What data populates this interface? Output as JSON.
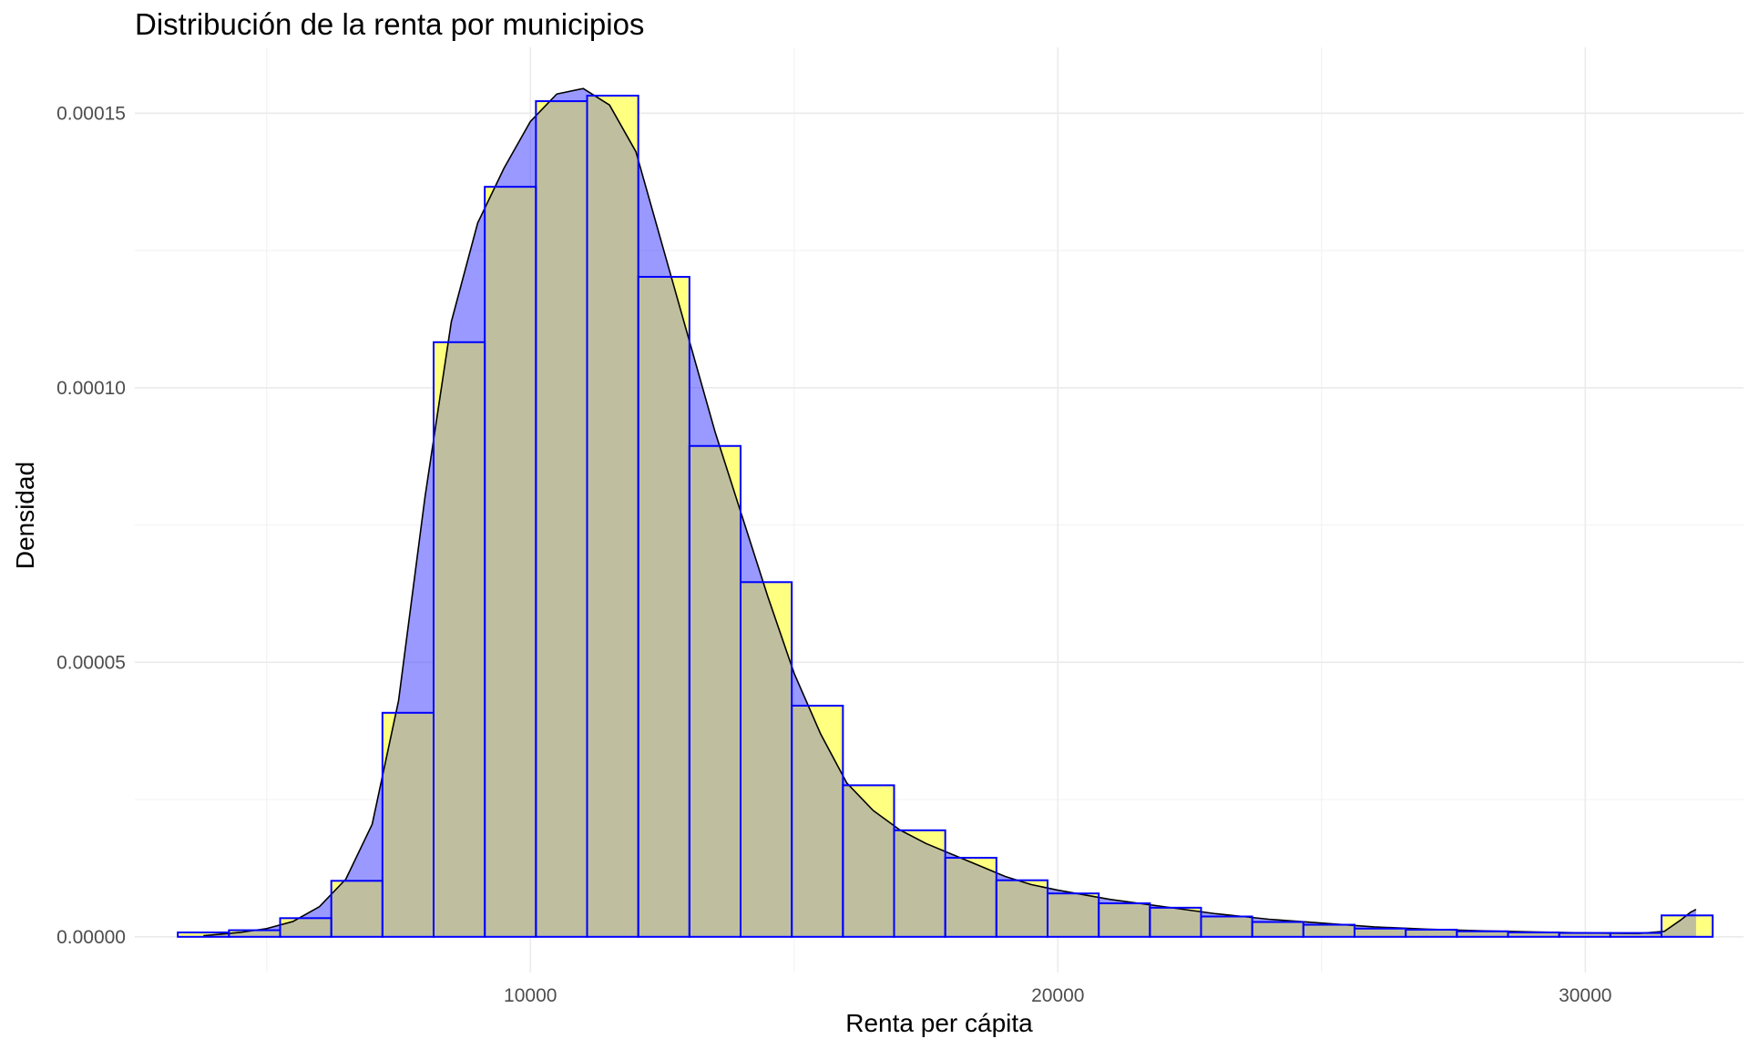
{
  "chart_data": {
    "type": "bar",
    "title": "Distribución de la renta por municipios",
    "xlabel": "Renta per cápita",
    "ylabel": "Densidad",
    "xlim": [
      2500,
      33000
    ],
    "ylim": [
      -6.5e-06,
      0.000162
    ],
    "x_ticks": [
      10000,
      20000,
      30000
    ],
    "x_tick_labels": [
      "10000",
      "20000",
      "30000"
    ],
    "y_ticks": [
      0,
      5e-05,
      0.0001,
      0.00015
    ],
    "y_tick_labels": [
      "0.00000",
      "0.00005",
      "0.00010",
      "0.00015"
    ],
    "grid": true,
    "colors": {
      "histogram_fill": "#ffff80",
      "histogram_border": "#0000ff",
      "density_fill": "#3333ff",
      "density_line": "#000000",
      "overlap_fill": "#bfbf9f",
      "grid_major": "#ebebeb",
      "grid_minor": "#f3f3f3"
    },
    "histogram": {
      "bin_width": 970,
      "bin_centers": [
        3800,
        4770,
        5740,
        6710,
        7680,
        8650,
        9620,
        10590,
        11560,
        12530,
        13500,
        14470,
        15440,
        16410,
        17380,
        18350,
        19320,
        20290,
        21260,
        22230,
        23200,
        24170,
        25140,
        26110,
        27080,
        28050,
        29020,
        29990,
        30960,
        31930
      ],
      "density": [
        8e-07,
        1.2e-06,
        3.4e-06,
        1.02e-05,
        4.08e-05,
        0.0001083,
        0.0001366,
        0.0001522,
        0.0001532,
        0.0001202,
        8.94e-05,
        6.46e-05,
        4.21e-05,
        2.76e-05,
        1.94e-05,
        1.44e-05,
        1.03e-05,
        7.9e-06,
        6.1e-06,
        5.3e-06,
        3.7e-06,
        2.7e-06,
        2.2e-06,
        1.5e-06,
        1.3e-06,
        1e-06,
        8e-07,
        7e-07,
        7e-07,
        3.9e-06
      ]
    },
    "density_curve": {
      "x": [
        3800,
        4500,
        5000,
        5500,
        6000,
        6500,
        7000,
        7500,
        8000,
        8500,
        9000,
        9500,
        10000,
        10500,
        11000,
        11500,
        12000,
        12500,
        13000,
        13500,
        14000,
        14500,
        15000,
        15500,
        16000,
        16500,
        17000,
        17500,
        18000,
        18500,
        19000,
        19500,
        20000,
        21000,
        22000,
        23000,
        24000,
        25000,
        26000,
        27000,
        28000,
        29000,
        30000,
        31000,
        31500,
        31800,
        32000,
        32100
      ],
      "y": [
        2e-07,
        8e-07,
        1.5e-06,
        2.8e-06,
        5.5e-06,
        1.05e-05,
        2.05e-05,
        4.3e-05,
        8e-05,
        0.000112,
        0.00013,
        0.00014,
        0.0001485,
        0.0001535,
        0.0001545,
        0.0001515,
        0.000143,
        0.000126,
        0.000109,
        9.2e-05,
        7.7e-05,
        6.2e-05,
        4.8e-05,
        3.7e-05,
        2.8e-05,
        2.3e-05,
        1.95e-05,
        1.7e-05,
        1.5e-05,
        1.3e-05,
        1.1e-05,
        9.5e-06,
        8.5e-06,
        6.8e-06,
        5.5e-06,
        4.2e-06,
        3.2e-06,
        2.5e-06,
        1.8e-06,
        1.4e-06,
        1.1e-06,
        9e-07,
        7e-07,
        6e-07,
        1e-06,
        3e-06,
        4.5e-06,
        5e-06
      ]
    }
  }
}
